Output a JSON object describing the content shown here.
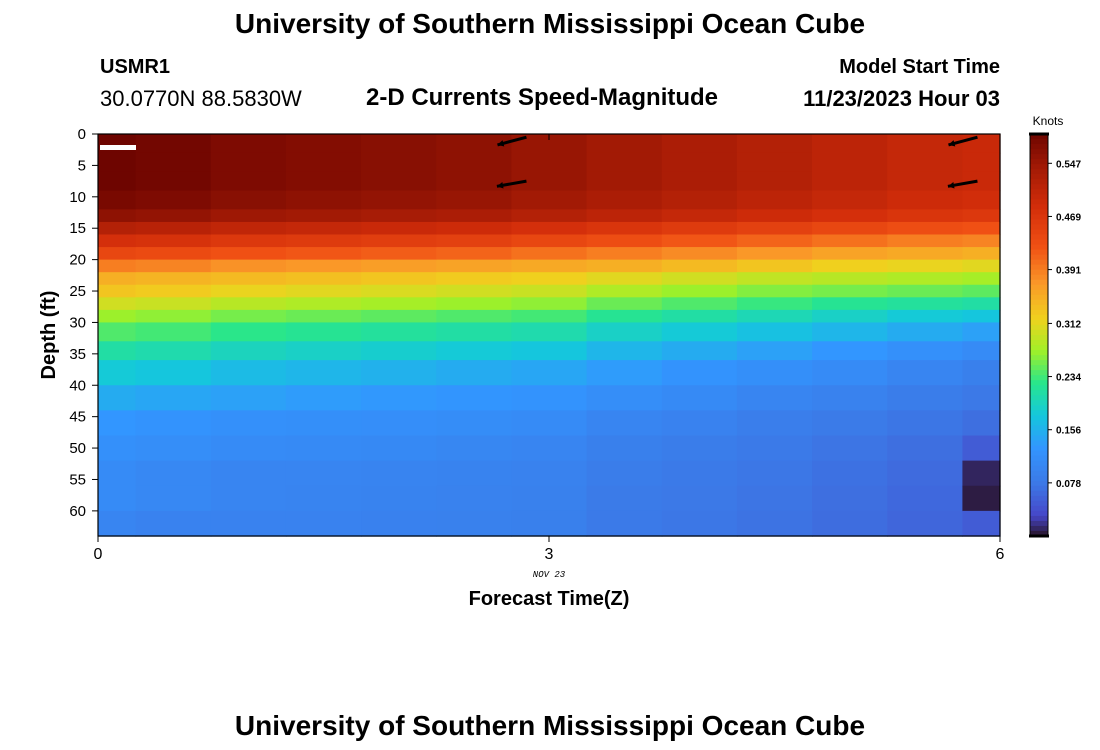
{
  "titles": {
    "main": "University of Southern Mississippi Ocean Cube",
    "bottom": "University of Southern Mississippi Ocean Cube"
  },
  "station": {
    "id": "USMR1",
    "coords": "30.0770N  88.5830W"
  },
  "model": {
    "label": "Model Start Time",
    "time": "11/23/2023 Hour 03"
  },
  "chart_data": {
    "type": "heatmap",
    "title": "2-D Currents Speed-Magnitude",
    "xlabel": "Forecast Time(Z)",
    "ylabel": "Depth (ft)",
    "x_sublabel": "NOV 23",
    "xlim": [
      0,
      6
    ],
    "ylim": [
      0,
      64
    ],
    "x_ticks": [
      "0",
      "3",
      "6"
    ],
    "x_tick_values": [
      0,
      3,
      6
    ],
    "y_ticks": [
      "0",
      "5",
      "10",
      "15",
      "20",
      "25",
      "30",
      "35",
      "40",
      "45",
      "50",
      "55",
      "60"
    ],
    "y_tick_values": [
      0,
      5,
      10,
      15,
      20,
      25,
      30,
      35,
      40,
      45,
      50,
      55,
      60
    ],
    "colorbar": {
      "unit": "Knots",
      "ticks": [
        "0.547",
        "0.469",
        "0.391",
        "0.312",
        "0.234",
        "0.156",
        "0.078"
      ],
      "tick_values": [
        0.547,
        0.469,
        0.391,
        0.312,
        0.234,
        0.156,
        0.078
      ],
      "min": 0.0,
      "max": 0.59
    },
    "time_columns": [
      0,
      0.25,
      0.75,
      1.25,
      1.75,
      2.25,
      2.75,
      3.25,
      3.75,
      4.25,
      4.75,
      5.25,
      5.75
    ],
    "depth_layers": [
      0,
      3,
      6,
      9,
      12,
      14,
      16,
      18,
      20,
      22,
      24,
      26,
      28,
      30,
      33,
      36,
      40,
      44,
      48,
      52,
      56,
      60,
      64
    ],
    "speed_knots": [
      [
        0.59,
        0.59,
        0.59,
        0.58,
        0.56,
        0.52,
        0.48,
        0.44,
        0.39,
        0.35,
        0.33,
        0.3,
        0.27,
        0.24,
        0.21,
        0.18,
        0.15,
        0.13,
        0.12,
        0.11,
        0.11,
        0.1,
        0.1
      ],
      [
        0.585,
        0.585,
        0.585,
        0.575,
        0.555,
        0.515,
        0.475,
        0.435,
        0.385,
        0.345,
        0.325,
        0.295,
        0.265,
        0.235,
        0.205,
        0.175,
        0.145,
        0.125,
        0.115,
        0.105,
        0.105,
        0.095,
        0.095
      ],
      [
        0.575,
        0.575,
        0.575,
        0.565,
        0.545,
        0.505,
        0.465,
        0.425,
        0.375,
        0.34,
        0.315,
        0.285,
        0.255,
        0.225,
        0.195,
        0.165,
        0.14,
        0.12,
        0.11,
        0.1,
        0.1,
        0.095,
        0.095
      ],
      [
        0.57,
        0.57,
        0.57,
        0.56,
        0.54,
        0.5,
        0.46,
        0.42,
        0.37,
        0.335,
        0.31,
        0.28,
        0.25,
        0.22,
        0.19,
        0.16,
        0.135,
        0.118,
        0.108,
        0.1,
        0.098,
        0.095,
        0.095
      ],
      [
        0.565,
        0.565,
        0.565,
        0.555,
        0.535,
        0.495,
        0.455,
        0.415,
        0.365,
        0.33,
        0.305,
        0.275,
        0.245,
        0.215,
        0.185,
        0.155,
        0.132,
        0.116,
        0.106,
        0.098,
        0.096,
        0.093,
        0.093
      ],
      [
        0.56,
        0.56,
        0.56,
        0.55,
        0.53,
        0.49,
        0.45,
        0.41,
        0.36,
        0.325,
        0.3,
        0.27,
        0.24,
        0.21,
        0.18,
        0.15,
        0.128,
        0.113,
        0.103,
        0.096,
        0.094,
        0.092,
        0.092
      ],
      [
        0.55,
        0.55,
        0.55,
        0.54,
        0.52,
        0.48,
        0.44,
        0.4,
        0.355,
        0.32,
        0.295,
        0.265,
        0.235,
        0.205,
        0.175,
        0.145,
        0.125,
        0.11,
        0.1,
        0.094,
        0.092,
        0.09,
        0.09
      ],
      [
        0.54,
        0.54,
        0.54,
        0.53,
        0.51,
        0.47,
        0.43,
        0.39,
        0.35,
        0.31,
        0.28,
        0.25,
        0.22,
        0.19,
        0.16,
        0.135,
        0.115,
        0.1,
        0.09,
        0.085,
        0.082,
        0.08,
        0.08
      ],
      [
        0.53,
        0.53,
        0.53,
        0.52,
        0.5,
        0.46,
        0.42,
        0.38,
        0.34,
        0.3,
        0.27,
        0.24,
        0.21,
        0.18,
        0.15,
        0.125,
        0.108,
        0.095,
        0.085,
        0.08,
        0.078,
        0.076,
        0.076
      ],
      [
        0.52,
        0.52,
        0.52,
        0.51,
        0.49,
        0.45,
        0.41,
        0.37,
        0.33,
        0.29,
        0.26,
        0.23,
        0.2,
        0.17,
        0.14,
        0.118,
        0.1,
        0.088,
        0.08,
        0.076,
        0.074,
        0.072,
        0.072
      ],
      [
        0.51,
        0.51,
        0.51,
        0.5,
        0.48,
        0.44,
        0.4,
        0.36,
        0.32,
        0.285,
        0.255,
        0.22,
        0.19,
        0.16,
        0.13,
        0.11,
        0.094,
        0.082,
        0.074,
        0.07,
        0.068,
        0.066,
        0.066
      ],
      [
        0.5,
        0.5,
        0.5,
        0.49,
        0.47,
        0.43,
        0.39,
        0.355,
        0.315,
        0.28,
        0.25,
        0.215,
        0.18,
        0.15,
        0.12,
        0.1,
        0.086,
        0.075,
        0.068,
        0.064,
        0.062,
        0.06,
        0.06
      ],
      [
        0.495,
        0.495,
        0.495,
        0.485,
        0.465,
        0.425,
        0.385,
        0.35,
        0.31,
        0.275,
        0.245,
        0.21,
        0.175,
        0.14,
        0.11,
        0.09,
        0.078,
        0.068,
        0.05,
        0.01,
        0.005,
        0.05,
        0.06
      ]
    ],
    "current_vectors": [
      {
        "time": 2.85,
        "depth": 0.5,
        "angle_deg": 195
      },
      {
        "time": 2.85,
        "depth": 7.5,
        "angle_deg": 190
      },
      {
        "time": 5.85,
        "depth": 0.5,
        "angle_deg": 195
      },
      {
        "time": 5.85,
        "depth": 7.5,
        "angle_deg": 190
      }
    ]
  }
}
